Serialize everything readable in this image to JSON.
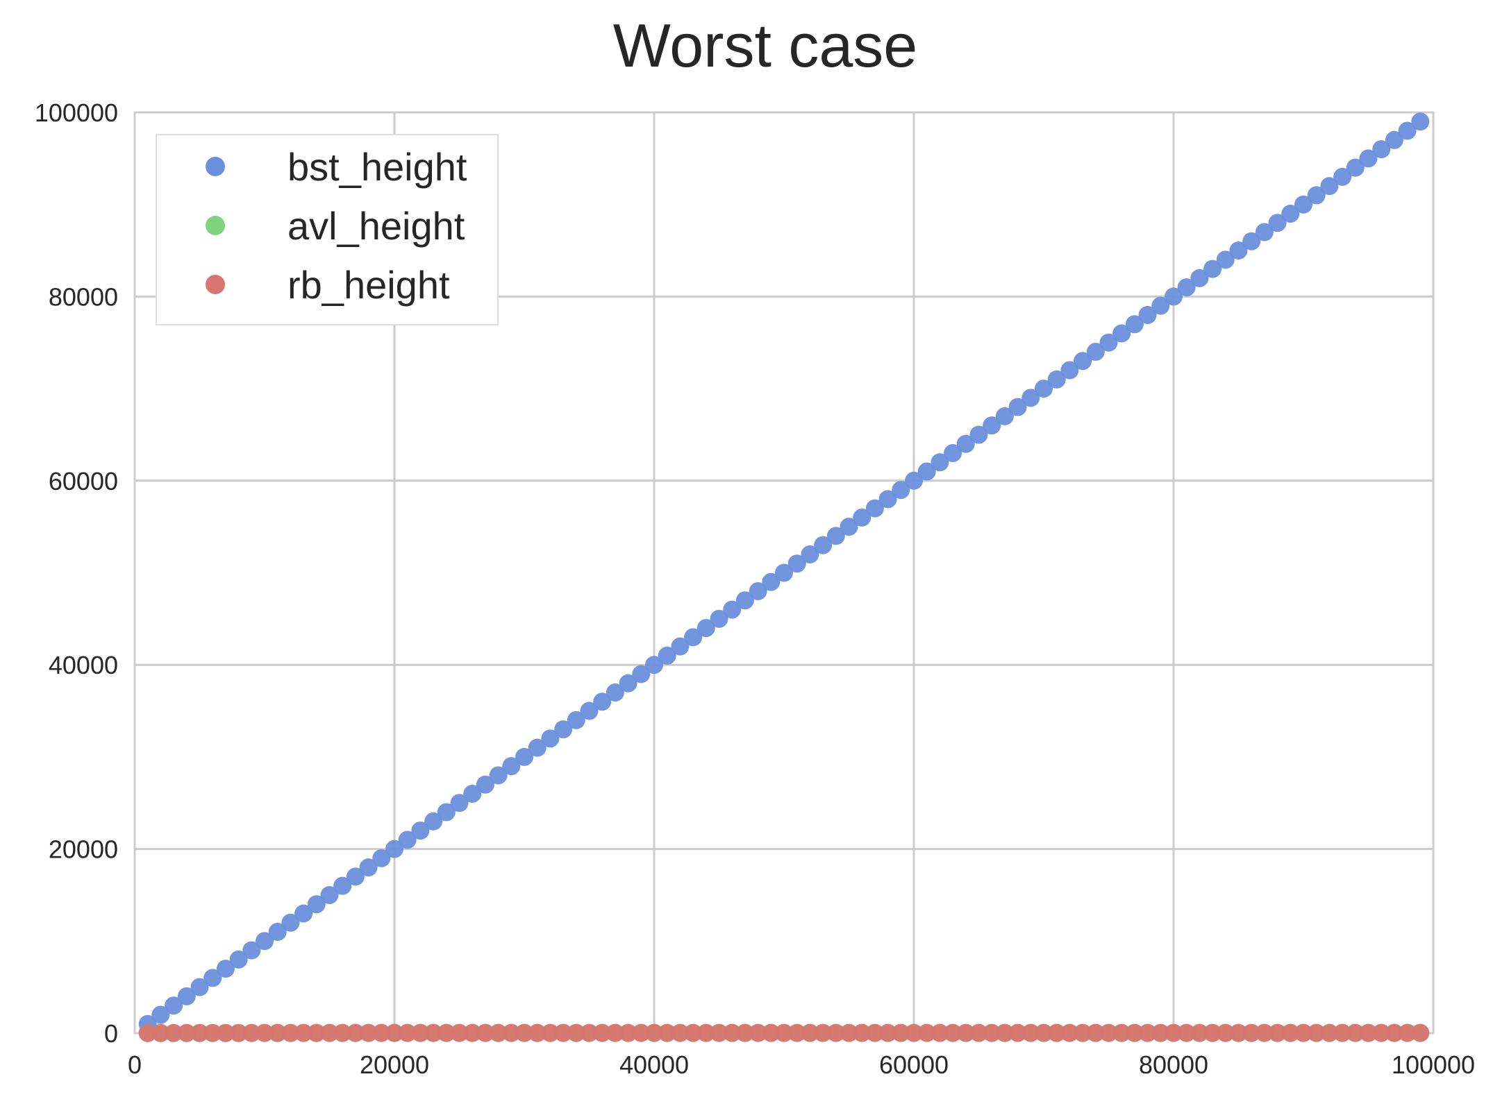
{
  "chart_data": {
    "type": "scatter",
    "title": "Worst case",
    "xlabel": "",
    "ylabel": "",
    "xlim": [
      0,
      100000
    ],
    "ylim": [
      0,
      100000
    ],
    "xticks": [
      0,
      20000,
      40000,
      60000,
      80000,
      100000
    ],
    "yticks": [
      0,
      20000,
      40000,
      60000,
      80000,
      100000
    ],
    "xtick_labels": [
      "0",
      "20000",
      "40000",
      "60000",
      "80000",
      "100000"
    ],
    "ytick_labels": [
      "0",
      "20000",
      "40000",
      "60000",
      "80000",
      "100000"
    ],
    "grid": true,
    "legend_position": "top-left",
    "x": [
      1000,
      2000,
      3000,
      4000,
      5000,
      6000,
      7000,
      8000,
      9000,
      10000,
      11000,
      12000,
      13000,
      14000,
      15000,
      16000,
      17000,
      18000,
      19000,
      20000,
      21000,
      22000,
      23000,
      24000,
      25000,
      26000,
      27000,
      28000,
      29000,
      30000,
      31000,
      32000,
      33000,
      34000,
      35000,
      36000,
      37000,
      38000,
      39000,
      40000,
      41000,
      42000,
      43000,
      44000,
      45000,
      46000,
      47000,
      48000,
      49000,
      50000,
      51000,
      52000,
      53000,
      54000,
      55000,
      56000,
      57000,
      58000,
      59000,
      60000,
      61000,
      62000,
      63000,
      64000,
      65000,
      66000,
      67000,
      68000,
      69000,
      70000,
      71000,
      72000,
      73000,
      74000,
      75000,
      76000,
      77000,
      78000,
      79000,
      80000,
      81000,
      82000,
      83000,
      84000,
      85000,
      86000,
      87000,
      88000,
      89000,
      90000,
      91000,
      92000,
      93000,
      94000,
      95000,
      96000,
      97000,
      98000,
      99000
    ],
    "series": [
      {
        "name": "bst_height",
        "color": "#6a8fdc",
        "values": [
          1000,
          2000,
          3000,
          4000,
          5000,
          6000,
          7000,
          8000,
          9000,
          10000,
          11000,
          12000,
          13000,
          14000,
          15000,
          16000,
          17000,
          18000,
          19000,
          20000,
          21000,
          22000,
          23000,
          24000,
          25000,
          26000,
          27000,
          28000,
          29000,
          30000,
          31000,
          32000,
          33000,
          34000,
          35000,
          36000,
          37000,
          38000,
          39000,
          40000,
          41000,
          42000,
          43000,
          44000,
          45000,
          46000,
          47000,
          48000,
          49000,
          50000,
          51000,
          52000,
          53000,
          54000,
          55000,
          56000,
          57000,
          58000,
          59000,
          60000,
          61000,
          62000,
          63000,
          64000,
          65000,
          66000,
          67000,
          68000,
          69000,
          70000,
          71000,
          72000,
          73000,
          74000,
          75000,
          76000,
          77000,
          78000,
          79000,
          80000,
          81000,
          82000,
          83000,
          84000,
          85000,
          86000,
          87000,
          88000,
          89000,
          90000,
          91000,
          92000,
          93000,
          94000,
          95000,
          96000,
          97000,
          98000,
          99000
        ]
      },
      {
        "name": "avl_height",
        "color": "#7fd27f",
        "values": [
          10,
          11,
          12,
          12,
          13,
          13,
          13,
          13,
          14,
          14,
          14,
          14,
          14,
          14,
          14,
          14,
          15,
          15,
          15,
          15,
          15,
          15,
          15,
          15,
          15,
          15,
          15,
          15,
          15,
          15,
          15,
          15,
          16,
          16,
          16,
          16,
          16,
          16,
          16,
          16,
          16,
          16,
          16,
          16,
          16,
          16,
          16,
          16,
          16,
          16,
          16,
          16,
          16,
          16,
          16,
          16,
          16,
          16,
          16,
          16,
          16,
          16,
          16,
          16,
          16,
          17,
          17,
          17,
          17,
          17,
          17,
          17,
          17,
          17,
          17,
          17,
          17,
          17,
          17,
          17,
          17,
          17,
          17,
          17,
          17,
          17,
          17,
          17,
          17,
          17,
          17,
          17,
          17,
          17,
          17,
          17,
          17,
          17,
          17
        ]
      },
      {
        "name": "rb_height",
        "color": "#d8756f",
        "values": [
          17,
          19,
          21,
          21,
          23,
          23,
          23,
          23,
          25,
          25,
          25,
          25,
          25,
          25,
          25,
          25,
          27,
          27,
          27,
          27,
          27,
          27,
          27,
          27,
          27,
          27,
          27,
          27,
          27,
          27,
          27,
          27,
          29,
          29,
          29,
          29,
          29,
          29,
          29,
          29,
          29,
          29,
          29,
          29,
          29,
          29,
          29,
          29,
          29,
          29,
          29,
          29,
          29,
          29,
          29,
          29,
          29,
          29,
          29,
          29,
          29,
          29,
          29,
          29,
          29,
          31,
          31,
          31,
          31,
          31,
          31,
          31,
          31,
          31,
          31,
          31,
          31,
          31,
          31,
          31,
          31,
          31,
          31,
          31,
          31,
          31,
          31,
          31,
          31,
          31,
          31,
          31,
          31,
          31,
          31,
          31,
          31,
          31,
          31
        ]
      }
    ]
  }
}
